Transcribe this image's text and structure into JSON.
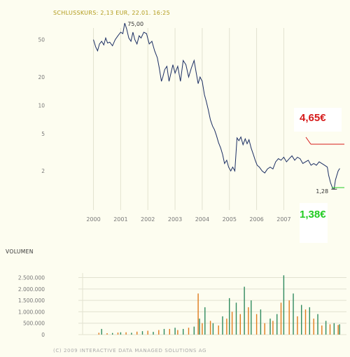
{
  "colors": {
    "background": "#fdfdf0",
    "header": "#b19a1a",
    "axis_text": "#777777",
    "grid": "#e2e2d0",
    "price_line": "#1b2e63",
    "vol_orange": "#e07b1c",
    "vol_green": "#2f8a5e",
    "red": "#d61a1a",
    "green": "#22cc22",
    "copyright": "#aaaaaa"
  },
  "header": {
    "text": "SCHLUSSKURS: 2,13 EUR, 22.01. 16:25"
  },
  "volume_title": "VOLUMEN",
  "copyright": "(C) 2009 INTERACTIVE DATA MANAGED SOLUTIONS AG",
  "callouts": {
    "high_value": "4,65€",
    "low_value": "1,38€"
  },
  "chart_data": [
    {
      "type": "line",
      "title": "SCHLUSSKURS: 2,13 EUR, 22.01. 16:25",
      "yscale": "log",
      "ylim": [
        1.2,
        75
      ],
      "xlim": [
        1999.6,
        2009.1
      ],
      "y_ticks": [
        50,
        20,
        10,
        5,
        2
      ],
      "y_tick_labels": [
        "50",
        "20",
        "10",
        "5",
        "2"
      ],
      "x_ticks": [
        2000,
        2001,
        2002,
        2003,
        2004,
        2005,
        2006,
        2007
      ],
      "x_tick_labels": [
        "2000",
        "2001",
        "2002",
        "2003",
        "2004",
        "2005",
        "2006",
        "2007"
      ],
      "grid": true,
      "annotations": [
        {
          "text": "75,00",
          "x": 2001.15,
          "y": 75
        },
        {
          "text": "1,28",
          "x": 2008.85,
          "y": 1.28
        }
      ],
      "x": [
        2000.0,
        2000.08,
        2000.15,
        2000.22,
        2000.3,
        2000.38,
        2000.45,
        2000.52,
        2000.6,
        2000.7,
        2000.8,
        2000.9,
        2001.0,
        2001.08,
        2001.15,
        2001.22,
        2001.3,
        2001.38,
        2001.45,
        2001.52,
        2001.6,
        2001.68,
        2001.75,
        2001.85,
        2001.95,
        2002.05,
        2002.15,
        2002.25,
        2002.35,
        2002.42,
        2002.5,
        2002.55,
        2002.62,
        2002.7,
        2002.78,
        2002.85,
        2002.92,
        2003.0,
        2003.1,
        2003.2,
        2003.3,
        2003.4,
        2003.5,
        2003.6,
        2003.7,
        2003.78,
        2003.85,
        2003.92,
        2004.0,
        2004.08,
        2004.15,
        2004.22,
        2004.3,
        2004.38,
        2004.45,
        2004.52,
        2004.6,
        2004.68,
        2004.75,
        2004.82,
        2004.9,
        2004.97,
        2005.05,
        2005.12,
        2005.2,
        2005.28,
        2005.35,
        2005.42,
        2005.5,
        2005.58,
        2005.65,
        2005.72,
        2005.8,
        2005.88,
        2005.95,
        2006.02,
        2006.1,
        2006.2,
        2006.3,
        2006.4,
        2006.5,
        2006.6,
        2006.7,
        2006.8,
        2006.9,
        2007.0,
        2007.1,
        2007.2,
        2007.3,
        2007.4,
        2007.5,
        2007.6,
        2007.7,
        2007.8,
        2007.9,
        2008.0,
        2008.1,
        2008.2,
        2008.3,
        2008.4,
        2008.5,
        2008.6,
        2008.65,
        2008.72,
        2008.8,
        2008.85,
        2008.9,
        2008.95,
        2009.0,
        2009.06
      ],
      "y": [
        50,
        42,
        38,
        45,
        48,
        44,
        52,
        46,
        47,
        43,
        50,
        55,
        60,
        58,
        75,
        65,
        52,
        48,
        60,
        50,
        45,
        55,
        52,
        60,
        58,
        45,
        48,
        38,
        32,
        25,
        18,
        20,
        24,
        26,
        18,
        22,
        27,
        22,
        26,
        18,
        30,
        27,
        20,
        25,
        30,
        22,
        17,
        20,
        18,
        13,
        11,
        9,
        7,
        6,
        5.5,
        4.8,
        4,
        3.5,
        3,
        2.4,
        2.6,
        2.2,
        2.0,
        2.2,
        2.0,
        4.5,
        4.2,
        4.6,
        3.8,
        4.4,
        3.9,
        4.3,
        3.5,
        3.0,
        2.6,
        2.3,
        2.2,
        2.0,
        1.9,
        2.1,
        2.2,
        2.1,
        2.5,
        2.7,
        2.6,
        2.8,
        2.5,
        2.7,
        2.9,
        2.6,
        2.8,
        2.7,
        2.4,
        2.5,
        2.6,
        2.3,
        2.4,
        2.3,
        2.5,
        2.4,
        2.3,
        2.2,
        1.8,
        1.5,
        1.3,
        1.28,
        1.6,
        1.8,
        2.0,
        2.13
      ]
    },
    {
      "type": "bar",
      "title": "VOLUMEN",
      "ylim": [
        0,
        2700000
      ],
      "y_ticks": [
        0,
        500000,
        1000000,
        1500000,
        2000000,
        2500000
      ],
      "y_tick_labels": [
        "0",
        "500.000",
        "1.000.000",
        "1.500.000",
        "2.000.000",
        "2.500.000"
      ],
      "series": [
        {
          "color": "#e07b1c",
          "x": [
            2000.2,
            2000.5,
            2000.9,
            2001.2,
            2001.6,
            2002.0,
            2002.4,
            2002.8,
            2003.1,
            2003.5,
            2003.85,
            2004.0,
            2004.3,
            2004.6,
            2004.9,
            2005.1,
            2005.4,
            2005.7,
            2006.0,
            2006.3,
            2006.6,
            2006.9,
            2007.2,
            2007.5,
            2007.8,
            2008.1,
            2008.4,
            2008.7,
            2009.0
          ],
          "values": [
            80000,
            60000,
            90000,
            100000,
            130000,
            170000,
            200000,
            250000,
            200000,
            300000,
            1800000,
            500000,
            600000,
            400000,
            700000,
            1000000,
            900000,
            1200000,
            900000,
            500000,
            600000,
            1400000,
            1500000,
            800000,
            1100000,
            700000,
            400000,
            450000,
            420000
          ]
        },
        {
          "color": "#2f8a5e",
          "x": [
            2000.3,
            2000.7,
            2001.0,
            2001.4,
            2001.8,
            2002.2,
            2002.6,
            2003.0,
            2003.3,
            2003.7,
            2003.9,
            2004.1,
            2004.4,
            2004.75,
            2005.0,
            2005.25,
            2005.55,
            2005.8,
            2006.15,
            2006.5,
            2006.75,
            2007.0,
            2007.35,
            2007.65,
            2007.95,
            2008.25,
            2008.55,
            2008.85,
            2009.05
          ],
          "values": [
            250000,
            70000,
            100000,
            80000,
            150000,
            120000,
            250000,
            300000,
            250000,
            350000,
            700000,
            1200000,
            500000,
            800000,
            1600000,
            1400000,
            2100000,
            1500000,
            1100000,
            700000,
            900000,
            2600000,
            1800000,
            1300000,
            1200000,
            900000,
            600000,
            500000,
            450000
          ]
        }
      ]
    }
  ]
}
